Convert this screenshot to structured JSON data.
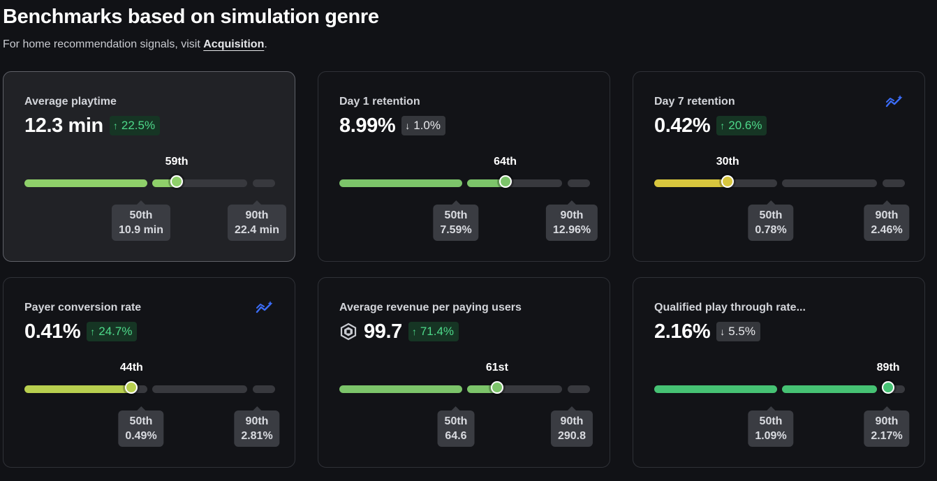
{
  "header": {
    "title": "Benchmarks based on simulation genre",
    "subtitle_prefix": "For home recommendation signals, visit ",
    "subtitle_link": "Acquisition",
    "subtitle_suffix": "."
  },
  "colors": {
    "green": "#7cc46a",
    "light_green": "#8fd06a",
    "yellow_green": "#b8cf4f",
    "yellow": "#d8c63e",
    "teal_green": "#46c274",
    "track": "#38393e",
    "up_badge": "#4ed98a"
  },
  "cards": [
    {
      "label": "Average playtime",
      "value": "12.3 min",
      "change": "22.5%",
      "direction": "up",
      "percentile": "59th",
      "percentile_value": 59,
      "p50_label": "50th",
      "p50_value": "10.9 min",
      "p90_label": "90th",
      "p90_value": "22.4 min",
      "has_trend_icon": false,
      "has_robux_icon": false,
      "bar_color": "#8fd06a"
    },
    {
      "label": "Day 1 retention",
      "value": "8.99%",
      "change": "1.0%",
      "direction": "down",
      "percentile": "64th",
      "percentile_value": 64,
      "p50_label": "50th",
      "p50_value": "7.59%",
      "p90_label": "90th",
      "p90_value": "12.96%",
      "has_trend_icon": false,
      "has_robux_icon": false,
      "bar_color": "#7cc46a"
    },
    {
      "label": "Day 7 retention",
      "value": "0.42%",
      "change": "20.6%",
      "direction": "up",
      "percentile": "30th",
      "percentile_value": 30,
      "p50_label": "50th",
      "p50_value": "0.78%",
      "p90_label": "90th",
      "p90_value": "2.46%",
      "has_trend_icon": true,
      "has_robux_icon": false,
      "bar_color": "#d8c63e"
    },
    {
      "label": "Payer conversion rate",
      "value": "0.41%",
      "change": "24.7%",
      "direction": "up",
      "percentile": "44th",
      "percentile_value": 44,
      "p50_label": "50th",
      "p50_value": "0.49%",
      "p90_label": "90th",
      "p90_value": "2.81%",
      "has_trend_icon": true,
      "has_robux_icon": false,
      "bar_color": "#b8cf4f"
    },
    {
      "label": "Average revenue per paying users",
      "value": "99.7",
      "change": "71.4%",
      "direction": "up",
      "percentile": "61st",
      "percentile_value": 61,
      "p50_label": "50th",
      "p50_value": "64.6",
      "p90_label": "90th",
      "p90_value": "290.8",
      "has_trend_icon": false,
      "has_robux_icon": true,
      "bar_color": "#7cc46a"
    },
    {
      "label": "Qualified play through rate...",
      "value": "2.16%",
      "change": "5.5%",
      "direction": "down",
      "percentile": "89th",
      "percentile_value": 89,
      "p50_label": "50th",
      "p50_value": "1.09%",
      "p90_label": "90th",
      "p90_value": "2.17%",
      "has_trend_icon": false,
      "has_robux_icon": false,
      "bar_color": "#46c274"
    }
  ]
}
